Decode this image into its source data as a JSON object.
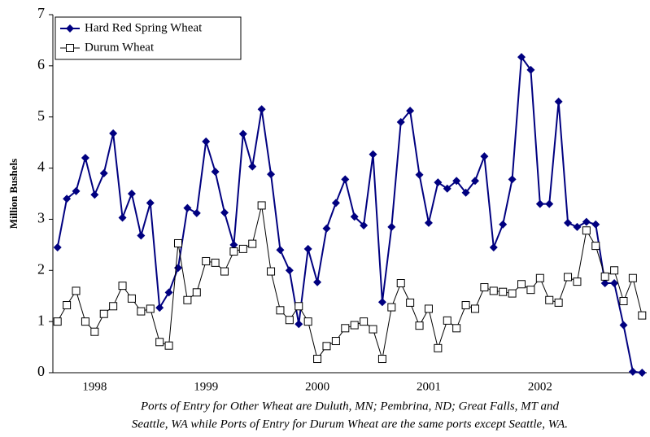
{
  "chart_data": {
    "type": "line",
    "y_label": "Million Bushels",
    "note": [
      "Ports of Entry for Other Wheat are Duluth, MN; Pembrina, ND; Great Falls, MT and",
      "Seattle, WA while Ports of Entry for Durum Wheat are the same ports except Seattle, WA."
    ],
    "categories": [
      null,
      null,
      null,
      null,
      "1998",
      null,
      null,
      null,
      null,
      null,
      null,
      null,
      null,
      null,
      null,
      null,
      "1999",
      null,
      null,
      null,
      null,
      null,
      null,
      null,
      null,
      null,
      null,
      null,
      "2000",
      null,
      null,
      null,
      null,
      null,
      null,
      null,
      null,
      null,
      null,
      null,
      "2001",
      null,
      null,
      null,
      null,
      null,
      null,
      null,
      null,
      null,
      null,
      null,
      "2002",
      null,
      null,
      null,
      null,
      null,
      null,
      null,
      null,
      null,
      null,
      null
    ],
    "series": [
      {
        "name": "Hard Red Spring Wheat",
        "color": "#000080",
        "marker": "diamond",
        "values": [
          2.45,
          3.4,
          3.55,
          4.2,
          3.48,
          3.9,
          4.68,
          3.03,
          3.5,
          2.68,
          3.32,
          1.27,
          1.57,
          2.05,
          3.22,
          3.12,
          4.52,
          3.93,
          3.13,
          2.5,
          4.67,
          4.03,
          5.15,
          3.88,
          2.4,
          2.0,
          0.95,
          2.42,
          1.77,
          2.82,
          3.32,
          3.78,
          3.05,
          2.88,
          4.27,
          1.38,
          2.85,
          4.9,
          5.12,
          3.87,
          2.93,
          3.72,
          3.6,
          3.75,
          3.52,
          3.75,
          4.23,
          2.45,
          2.9,
          3.78,
          6.17,
          5.92,
          3.3,
          3.3,
          5.3,
          2.93,
          2.85,
          2.95,
          2.9,
          1.75,
          1.75,
          0.93,
          0.02,
          0.0
        ]
      },
      {
        "name": "Durum Wheat",
        "color": "#000000",
        "marker": "square",
        "values": [
          1.0,
          1.32,
          1.6,
          1.0,
          0.8,
          1.15,
          1.3,
          1.7,
          1.45,
          1.2,
          1.25,
          0.6,
          0.53,
          2.53,
          1.42,
          1.57,
          2.18,
          2.15,
          1.98,
          2.37,
          2.42,
          2.52,
          3.27,
          1.98,
          1.22,
          1.03,
          1.3,
          1.0,
          0.27,
          0.52,
          0.62,
          0.87,
          0.93,
          1.0,
          0.85,
          0.27,
          1.28,
          1.75,
          1.37,
          0.92,
          1.25,
          0.48,
          1.02,
          0.87,
          1.32,
          1.25,
          1.67,
          1.6,
          1.58,
          1.55,
          1.73,
          1.62,
          1.85,
          1.42,
          1.37,
          1.87,
          1.78,
          2.78,
          2.48,
          1.88,
          2.0,
          1.4,
          1.85,
          1.12
        ]
      }
    ],
    "ylim": [
      0,
      7
    ],
    "yticks": [
      0,
      1,
      2,
      3,
      4,
      5,
      6,
      7
    ],
    "legend": "upper left"
  }
}
